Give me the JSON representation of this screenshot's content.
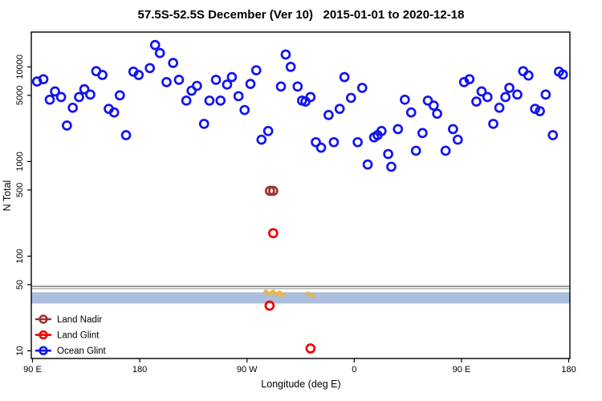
{
  "title": "57.5S-52.5S December (Ver 10)   2015-01-01 to 2020-12-18",
  "chart_data": {
    "type": "scatter",
    "title": "57.5S-52.5S December (Ver 10)   2015-01-01 to 2020-12-18",
    "xlabel": "Longitude (deg E)",
    "ylabel": "N Total",
    "x_axis": {
      "scale": "linear",
      "range": [
        89,
        541
      ],
      "wraps_dateline": true,
      "note": "axis degrees east of Greenwich, unwrapped: 270=90W, 360=0, 450=90E, 540=180",
      "tick_values": [
        90,
        180,
        270,
        360,
        450,
        540
      ],
      "tick_labels": [
        "90 E",
        "180",
        "90 W",
        "0",
        "90 E",
        "180"
      ]
    },
    "y_axis": {
      "scale": "log",
      "range": [
        8.3,
        23300
      ],
      "tick_values": [
        10,
        50,
        100,
        500,
        1000,
        5000,
        10000
      ],
      "tick_labels": [
        "10",
        "50",
        "100",
        "500",
        "1000",
        "5000",
        "10000"
      ]
    },
    "grid": false,
    "legend_position": "bottom-left-inside",
    "series": [
      {
        "name": "Land Nadir",
        "color": "#9E3432",
        "marker": "open-circle",
        "points": [
          [
            289.3,
            490
          ],
          [
            292.0,
            490
          ]
        ]
      },
      {
        "name": "Land Glint",
        "color": "#EE0000",
        "marker": "open-circle",
        "points": [
          [
            292.0,
            175
          ],
          [
            289.0,
            30
          ],
          [
            323.3,
            10.6
          ]
        ]
      },
      {
        "name": "Ocean Glint",
        "color": "#1414EE",
        "marker": "open-circle",
        "points": [
          [
            93.8,
            7000
          ],
          [
            99.1,
            7400
          ],
          [
            104.5,
            4500
          ],
          [
            108.9,
            5500
          ],
          [
            114.0,
            4800
          ],
          [
            118.9,
            2400
          ],
          [
            123.8,
            3700
          ],
          [
            129.1,
            4800
          ],
          [
            133.5,
            5800
          ],
          [
            138.5,
            5100
          ],
          [
            143.5,
            9000
          ],
          [
            148.7,
            8200
          ],
          [
            154.0,
            3600
          ],
          [
            158.5,
            3300
          ],
          [
            163.3,
            5000
          ],
          [
            168.5,
            1900
          ],
          [
            174.7,
            8900
          ],
          [
            179.1,
            8200
          ],
          [
            188.5,
            9700
          ],
          [
            192.9,
            17000
          ],
          [
            196.9,
            14000
          ],
          [
            202.5,
            6900
          ],
          [
            208.0,
            11000
          ],
          [
            212.9,
            7300
          ],
          [
            219.1,
            4400
          ],
          [
            223.5,
            5600
          ],
          [
            228.0,
            6300
          ],
          [
            234.0,
            2500
          ],
          [
            238.5,
            4400
          ],
          [
            244.0,
            7300
          ],
          [
            247.8,
            4400
          ],
          [
            253.3,
            6500
          ],
          [
            257.3,
            7800
          ],
          [
            262.9,
            4900
          ],
          [
            268.0,
            3500
          ],
          [
            272.9,
            6600
          ],
          [
            277.8,
            9200
          ],
          [
            282.2,
            1700
          ],
          [
            287.8,
            2100
          ],
          [
            298.5,
            6200
          ],
          [
            302.5,
            13500
          ],
          [
            306.7,
            10000
          ],
          [
            312.5,
            6200
          ],
          [
            316.2,
            4400
          ],
          [
            319.1,
            4300
          ],
          [
            323.3,
            4800
          ],
          [
            327.8,
            1600
          ],
          [
            332.2,
            1400
          ],
          [
            338.5,
            3100
          ],
          [
            342.9,
            1600
          ],
          [
            347.8,
            3600
          ],
          [
            351.8,
            7800
          ],
          [
            357.3,
            4700
          ],
          [
            362.9,
            1600
          ],
          [
            366.7,
            6000
          ],
          [
            371.3,
            930
          ],
          [
            376.7,
            1800
          ],
          [
            379.6,
            1900
          ],
          [
            382.9,
            2100
          ],
          [
            388.5,
            1200
          ],
          [
            391.1,
            880
          ],
          [
            396.7,
            2200
          ],
          [
            402.5,
            4500
          ],
          [
            407.8,
            3300
          ],
          [
            411.8,
            1300
          ],
          [
            417.3,
            2000
          ],
          [
            421.8,
            4400
          ],
          [
            426.7,
            3900
          ],
          [
            429.6,
            3200
          ],
          [
            436.7,
            1300
          ],
          [
            442.9,
            2200
          ],
          [
            446.9,
            1700
          ],
          [
            452.2,
            6900
          ],
          [
            456.7,
            7400
          ],
          [
            462.5,
            4300
          ],
          [
            466.9,
            5500
          ],
          [
            471.8,
            4800
          ],
          [
            476.7,
            2500
          ],
          [
            481.8,
            3700
          ],
          [
            486.9,
            4800
          ],
          [
            490.2,
            6000
          ],
          [
            496.9,
            5100
          ],
          [
            501.8,
            9000
          ],
          [
            506.2,
            8100
          ],
          [
            511.8,
            3600
          ],
          [
            515.8,
            3400
          ],
          [
            520.7,
            5100
          ],
          [
            526.7,
            1900
          ],
          [
            531.8,
            8900
          ],
          [
            535.1,
            8300
          ]
        ]
      }
    ],
    "annotations": {
      "h_lines": [
        {
          "y": 48,
          "color": "#6E6E6E",
          "width": 1.4
        },
        {
          "y": 45.5,
          "color": "#ADADAD",
          "width": 1.4
        }
      ],
      "band": {
        "y_from": 31.6,
        "y_to": 41.6,
        "color": "#A9BFDD"
      },
      "orange_marks": {
        "color": "#E9B44C",
        "marker": "asterisk",
        "points": [
          [
            286.0,
            42
          ],
          [
            289.3,
            40.5
          ],
          [
            292.0,
            42
          ],
          [
            294.7,
            39.5
          ],
          [
            297.3,
            41
          ],
          [
            300.0,
            39
          ],
          [
            321.3,
            40
          ],
          [
            325.3,
            38
          ]
        ]
      }
    },
    "legend": {
      "items": [
        {
          "label": "Land Nadir",
          "color": "#9E3432"
        },
        {
          "label": "Land Glint",
          "color": "#EE0000"
        },
        {
          "label": "Ocean Glint",
          "color": "#1414EE"
        }
      ]
    }
  }
}
